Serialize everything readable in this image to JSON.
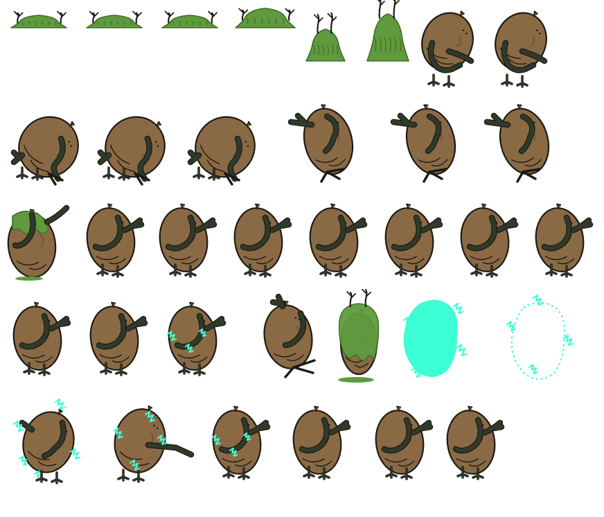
{
  "sheet": {
    "rows": [
      {
        "frames": [
          {
            "kind": "moss-mound",
            "level": 1
          },
          {
            "kind": "moss-mound",
            "level": 1
          },
          {
            "kind": "moss-mound",
            "level": 1
          },
          {
            "kind": "moss-mound",
            "level": 2
          },
          {
            "kind": "moss-rise",
            "level": 3
          },
          {
            "kind": "moss-rise",
            "level": 4
          },
          {
            "kind": "potato-crouch"
          },
          {
            "kind": "potato-crouch"
          }
        ]
      },
      {
        "frames": [
          {
            "kind": "potato-lean"
          },
          {
            "kind": "potato-lean"
          },
          {
            "kind": "potato-lean"
          },
          {
            "kind": "potato-reach"
          },
          {
            "kind": "potato-reach"
          },
          {
            "kind": "potato-reach"
          }
        ]
      },
      {
        "frames": [
          {
            "kind": "potato-moss-top"
          },
          {
            "kind": "potato-idle"
          },
          {
            "kind": "potato-idle"
          },
          {
            "kind": "potato-idle"
          },
          {
            "kind": "potato-idle"
          },
          {
            "kind": "potato-idle"
          },
          {
            "kind": "potato-idle"
          },
          {
            "kind": "potato-idle"
          }
        ]
      },
      {
        "frames": [
          {
            "kind": "potato-idle"
          },
          {
            "kind": "potato-idle"
          },
          {
            "kind": "potato-shock-light"
          },
          {
            "kind": "potato-walk"
          },
          {
            "kind": "potato-mossed"
          },
          {
            "kind": "cyan-blob"
          },
          {
            "kind": "cyan-outline"
          }
        ]
      },
      {
        "frames": [
          {
            "kind": "potato-shock-heavy"
          },
          {
            "kind": "potato-shock-punch"
          },
          {
            "kind": "potato-shock-light"
          },
          {
            "kind": "potato-idle"
          },
          {
            "kind": "potato-idle"
          },
          {
            "kind": "potato-idle"
          }
        ]
      }
    ]
  },
  "palette": {
    "background": "#ffffff",
    "potato_body": "#8a6a45",
    "potato_shade": "#6b5032",
    "outline": "#1e1a14",
    "arm": "#2f3a2a",
    "moss": "#5f9a3e",
    "moss_dark": "#3f6e28",
    "energy": "#3dffd6"
  }
}
